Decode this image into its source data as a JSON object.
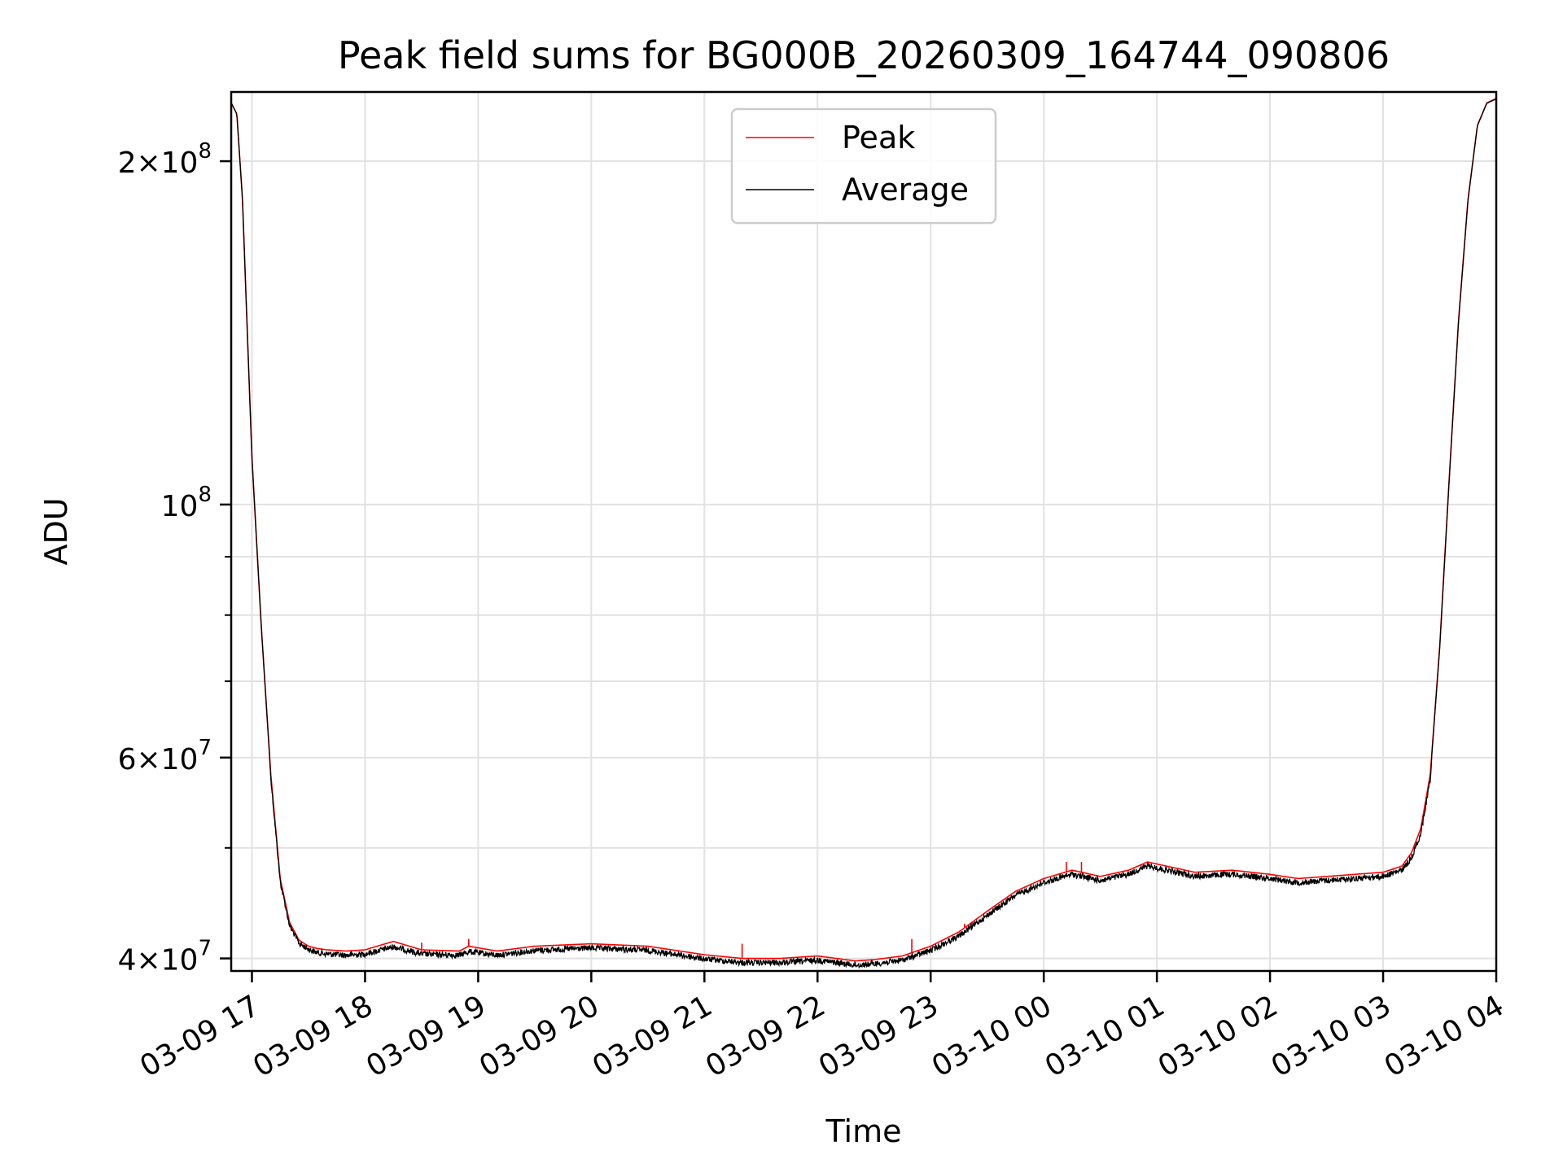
{
  "chart_data": {
    "type": "line",
    "title": "Peak field sums for BG000B_20260309_164744_090806",
    "xlabel": "Time",
    "ylabel": "ADU",
    "yscale": "log",
    "ylim": [
      39000000,
      230000000
    ],
    "xlim": [
      "2026-03-09T16:49",
      "2026-03-10T04:00"
    ],
    "grid": true,
    "legend_position": "upper center",
    "x_ticks": [
      {
        "label": "03-09 17",
        "value": "2026-03-09T17:00"
      },
      {
        "label": "03-09 18",
        "value": "2026-03-09T18:00"
      },
      {
        "label": "03-09 19",
        "value": "2026-03-09T19:00"
      },
      {
        "label": "03-09 20",
        "value": "2026-03-09T20:00"
      },
      {
        "label": "03-09 21",
        "value": "2026-03-09T21:00"
      },
      {
        "label": "03-09 22",
        "value": "2026-03-09T22:00"
      },
      {
        "label": "03-09 23",
        "value": "2026-03-09T23:00"
      },
      {
        "label": "03-10 00",
        "value": "2026-03-10T00:00"
      },
      {
        "label": "03-10 01",
        "value": "2026-03-10T01:00"
      },
      {
        "label": "03-10 02",
        "value": "2026-03-10T02:00"
      },
      {
        "label": "03-10 03",
        "value": "2026-03-10T03:00"
      },
      {
        "label": "03-10 04",
        "value": "2026-03-10T04:00"
      }
    ],
    "y_ticks": [
      {
        "base": "4",
        "exp": "7",
        "value": 40000000
      },
      {
        "base": "6",
        "exp": "7",
        "value": 60000000
      },
      {
        "base": "",
        "exp": "8",
        "value": 100000000
      },
      {
        "base": "2",
        "exp": "8",
        "value": 200000000
      }
    ],
    "y_minor_ticks": [
      50000000,
      70000000,
      80000000,
      90000000
    ],
    "series": [
      {
        "name": "Peak",
        "color": "#ff0000",
        "x": [
          "2026-03-09T16:49",
          "2026-03-09T16:52",
          "2026-03-09T16:55",
          "2026-03-09T16:57",
          "2026-03-09T17:00",
          "2026-03-09T17:05",
          "2026-03-09T17:10",
          "2026-03-09T17:15",
          "2026-03-09T17:20",
          "2026-03-09T17:25",
          "2026-03-09T17:30",
          "2026-03-09T17:35",
          "2026-03-09T17:40",
          "2026-03-09T17:50",
          "2026-03-09T18:00",
          "2026-03-09T18:15",
          "2026-03-09T18:30",
          "2026-03-09T18:50",
          "2026-03-09T18:55",
          "2026-03-09T19:10",
          "2026-03-09T19:30",
          "2026-03-09T20:00",
          "2026-03-09T20:30",
          "2026-03-09T21:00",
          "2026-03-09T21:20",
          "2026-03-09T21:40",
          "2026-03-09T22:00",
          "2026-03-09T22:20",
          "2026-03-09T22:30",
          "2026-03-09T22:45",
          "2026-03-09T23:00",
          "2026-03-09T23:15",
          "2026-03-09T23:30",
          "2026-03-09T23:45",
          "2026-03-10T00:00",
          "2026-03-10T00:15",
          "2026-03-10T00:30",
          "2026-03-10T00:45",
          "2026-03-10T00:55",
          "2026-03-10T01:10",
          "2026-03-10T01:20",
          "2026-03-10T01:40",
          "2026-03-10T02:00",
          "2026-03-10T02:15",
          "2026-03-10T02:30",
          "2026-03-10T02:45",
          "2026-03-10T03:00",
          "2026-03-10T03:10",
          "2026-03-10T03:15",
          "2026-03-10T03:20",
          "2026-03-10T03:25",
          "2026-03-10T03:30",
          "2026-03-10T03:35",
          "2026-03-10T03:40",
          "2026-03-10T03:45",
          "2026-03-10T03:50",
          "2026-03-10T03:55",
          "2026-03-10T04:00"
        ],
        "y": [
          225000000,
          220000000,
          185000000,
          150000000,
          110000000,
          78000000,
          58000000,
          47000000,
          43000000,
          41500000,
          41000000,
          40800000,
          40700000,
          40600000,
          40700000,
          41400000,
          40700000,
          40600000,
          41000000,
          40600000,
          41000000,
          41200000,
          41000000,
          40300000,
          40000000,
          40000000,
          40200000,
          39800000,
          39900000,
          40200000,
          41000000,
          42200000,
          44000000,
          45800000,
          47000000,
          47800000,
          47200000,
          47800000,
          48600000,
          48000000,
          47600000,
          47800000,
          47400000,
          47000000,
          47200000,
          47400000,
          47600000,
          48200000,
          49500000,
          52000000,
          58000000,
          75000000,
          105000000,
          145000000,
          185000000,
          215000000,
          225000000,
          227000000
        ],
        "spikes": [
          {
            "x": "2026-03-09T18:30",
            "y": 41300000
          },
          {
            "x": "2026-03-09T18:55",
            "y": 41600000
          },
          {
            "x": "2026-03-09T21:20",
            "y": 41200000
          },
          {
            "x": "2026-03-09T22:50",
            "y": 41600000
          },
          {
            "x": "2026-03-09T23:18",
            "y": 42900000
          },
          {
            "x": "2026-03-10T00:12",
            "y": 48600000
          },
          {
            "x": "2026-03-10T00:20",
            "y": 48600000
          },
          {
            "x": "2026-03-10T03:17",
            "y": 50500000
          }
        ]
      },
      {
        "name": "Average",
        "color": "#000000",
        "x": [
          "2026-03-09T16:49",
          "2026-03-09T16:52",
          "2026-03-09T16:55",
          "2026-03-09T16:57",
          "2026-03-09T17:00",
          "2026-03-09T17:05",
          "2026-03-09T17:10",
          "2026-03-09T17:15",
          "2026-03-09T17:20",
          "2026-03-09T17:25",
          "2026-03-09T17:30",
          "2026-03-09T17:35",
          "2026-03-09T17:40",
          "2026-03-09T17:50",
          "2026-03-09T18:00",
          "2026-03-09T18:15",
          "2026-03-09T18:30",
          "2026-03-09T18:50",
          "2026-03-09T18:55",
          "2026-03-09T19:10",
          "2026-03-09T19:30",
          "2026-03-09T20:00",
          "2026-03-09T20:30",
          "2026-03-09T21:00",
          "2026-03-09T21:20",
          "2026-03-09T21:40",
          "2026-03-09T22:00",
          "2026-03-09T22:20",
          "2026-03-09T22:30",
          "2026-03-09T22:45",
          "2026-03-09T23:00",
          "2026-03-09T23:15",
          "2026-03-09T23:30",
          "2026-03-09T23:45",
          "2026-03-10T00:00",
          "2026-03-10T00:15",
          "2026-03-10T00:30",
          "2026-03-10T00:45",
          "2026-03-10T00:55",
          "2026-03-10T01:10",
          "2026-03-10T01:20",
          "2026-03-10T01:40",
          "2026-03-10T02:00",
          "2026-03-10T02:15",
          "2026-03-10T02:30",
          "2026-03-10T02:45",
          "2026-03-10T03:00",
          "2026-03-10T03:10",
          "2026-03-10T03:15",
          "2026-03-10T03:20",
          "2026-03-10T03:25",
          "2026-03-10T03:30",
          "2026-03-10T03:35",
          "2026-03-10T03:40",
          "2026-03-10T03:45",
          "2026-03-10T03:50",
          "2026-03-10T03:55",
          "2026-03-10T04:00"
        ],
        "y": [
          225000000,
          220000000,
          185000000,
          150000000,
          110000000,
          78000000,
          58000000,
          47000000,
          43000000,
          41500000,
          41000000,
          40700000,
          40600000,
          40500000,
          40600000,
          41200000,
          40600000,
          40500000,
          40800000,
          40500000,
          40900000,
          41100000,
          40900000,
          40200000,
          39900000,
          39900000,
          40100000,
          39700000,
          39800000,
          40100000,
          40900000,
          42100000,
          43900000,
          45700000,
          46900000,
          47700000,
          47100000,
          47700000,
          48500000,
          47900000,
          47500000,
          47700000,
          47300000,
          46900000,
          47100000,
          47300000,
          47500000,
          48100000,
          49300000,
          51800000,
          57800000,
          74800000,
          104800000,
          144800000,
          184800000,
          214800000,
          224800000,
          226800000
        ],
        "noise": 0.012
      }
    ]
  }
}
